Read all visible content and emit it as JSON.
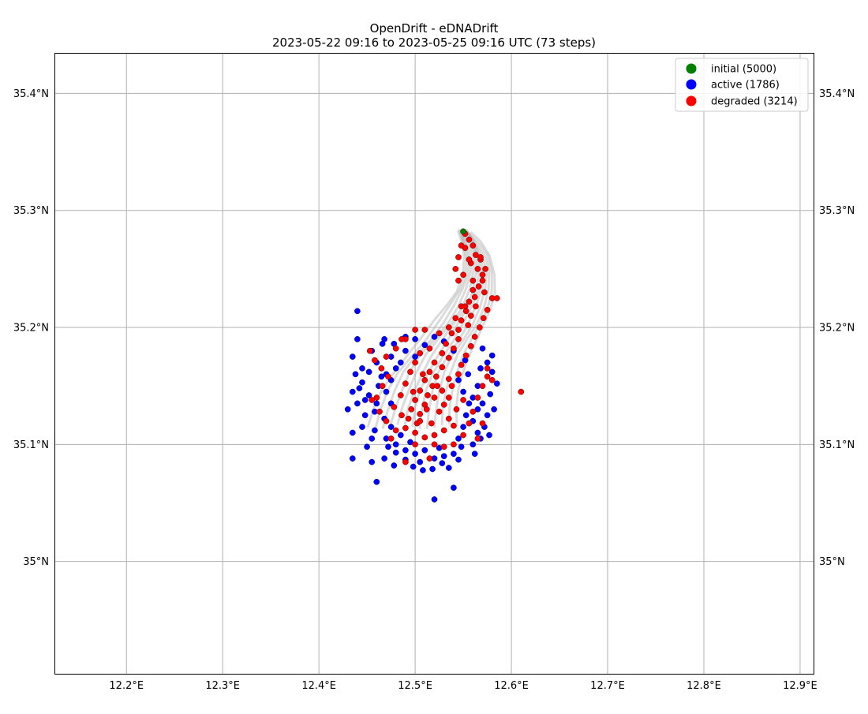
{
  "chart_data": {
    "type": "scatter",
    "title": "OpenDrift - eDNADrift",
    "subtitle": "2023-05-22 09:16 to 2023-05-25 09:16 UTC (73 steps)",
    "xlabel": "",
    "ylabel": "",
    "xlim": [
      12.126,
      12.914
    ],
    "ylim": [
      34.904,
      35.434
    ],
    "grid": true,
    "legend_position": "top-right",
    "x_ticks": [
      {
        "value": 12.2,
        "label": "12.2°E"
      },
      {
        "value": 12.3,
        "label": "12.3°E"
      },
      {
        "value": 12.4,
        "label": "12.4°E"
      },
      {
        "value": 12.5,
        "label": "12.5°E"
      },
      {
        "value": 12.6,
        "label": "12.6°E"
      },
      {
        "value": 12.7,
        "label": "12.7°E"
      },
      {
        "value": 12.8,
        "label": "12.8°E"
      },
      {
        "value": 12.9,
        "label": "12.9°E"
      }
    ],
    "y_ticks": [
      {
        "value": 35.0,
        "label": "35°N"
      },
      {
        "value": 35.1,
        "label": "35.1°N"
      },
      {
        "value": 35.2,
        "label": "35.2°N"
      },
      {
        "value": 35.3,
        "label": "35.3°N"
      },
      {
        "value": 35.4,
        "label": "35.4°N"
      }
    ],
    "series": [
      {
        "name": "initial (5000)",
        "color": "#008000",
        "points": [
          [
            12.55,
            35.282
          ]
        ]
      },
      {
        "name": "active (1786)",
        "color": "#0000ff",
        "points": [
          [
            12.44,
            35.214
          ],
          [
            12.44,
            35.19
          ],
          [
            12.435,
            35.175
          ],
          [
            12.445,
            35.165
          ],
          [
            12.438,
            35.16
          ],
          [
            12.445,
            35.153
          ],
          [
            12.435,
            35.145
          ],
          [
            12.44,
            35.135
          ],
          [
            12.43,
            35.13
          ],
          [
            12.448,
            35.125
          ],
          [
            12.445,
            35.115
          ],
          [
            12.435,
            35.11
          ],
          [
            12.455,
            35.105
          ],
          [
            12.45,
            35.098
          ],
          [
            12.435,
            35.088
          ],
          [
            12.455,
            35.085
          ],
          [
            12.468,
            35.088
          ],
          [
            12.478,
            35.082
          ],
          [
            12.48,
            35.093
          ],
          [
            12.49,
            35.087
          ],
          [
            12.498,
            35.081
          ],
          [
            12.508,
            35.078
          ],
          [
            12.52,
            35.088
          ],
          [
            12.53,
            35.09
          ],
          [
            12.54,
            35.092
          ],
          [
            12.548,
            35.098
          ],
          [
            12.535,
            35.08
          ],
          [
            12.518,
            35.079
          ],
          [
            12.46,
            35.068
          ],
          [
            12.52,
            35.053
          ],
          [
            12.54,
            35.063
          ],
          [
            12.568,
            35.105
          ],
          [
            12.572,
            35.115
          ],
          [
            12.575,
            35.125
          ],
          [
            12.57,
            35.135
          ],
          [
            12.578,
            35.143
          ],
          [
            12.585,
            35.152
          ],
          [
            12.58,
            35.162
          ],
          [
            12.575,
            35.17
          ],
          [
            12.58,
            35.176
          ],
          [
            12.57,
            35.182
          ],
          [
            12.468,
            35.19
          ],
          [
            12.478,
            35.186
          ],
          [
            12.49,
            35.192
          ],
          [
            12.5,
            35.19
          ],
          [
            12.455,
            35.18
          ],
          [
            12.46,
            35.17
          ],
          [
            12.47,
            35.16
          ],
          [
            12.462,
            35.15
          ],
          [
            12.452,
            35.142
          ],
          [
            12.46,
            35.135
          ],
          [
            12.468,
            35.122
          ],
          [
            12.458,
            35.112
          ],
          [
            12.47,
            35.105
          ],
          [
            12.48,
            35.1
          ],
          [
            12.49,
            35.095
          ],
          [
            12.5,
            35.092
          ],
          [
            12.51,
            35.095
          ],
          [
            12.525,
            35.097
          ],
          [
            12.56,
            35.1
          ],
          [
            12.565,
            35.11
          ],
          [
            12.56,
            35.12
          ],
          [
            12.565,
            35.13
          ],
          [
            12.56,
            35.14
          ],
          [
            12.565,
            35.15
          ],
          [
            12.555,
            35.16
          ],
          [
            12.568,
            35.165
          ],
          [
            12.475,
            35.175
          ],
          [
            12.48,
            35.165
          ],
          [
            12.475,
            35.155
          ],
          [
            12.47,
            35.145
          ],
          [
            12.475,
            35.135
          ],
          [
            12.475,
            35.115
          ],
          [
            12.485,
            35.108
          ],
          [
            12.495,
            35.102
          ],
          [
            12.545,
            35.105
          ],
          [
            12.55,
            35.115
          ],
          [
            12.553,
            35.125
          ],
          [
            12.556,
            35.135
          ],
          [
            12.55,
            35.145
          ],
          [
            12.545,
            35.155
          ],
          [
            12.49,
            35.18
          ],
          [
            12.485,
            35.17
          ],
          [
            12.5,
            35.175
          ],
          [
            12.51,
            35.185
          ],
          [
            12.52,
            35.192
          ],
          [
            12.53,
            35.188
          ],
          [
            12.54,
            35.18
          ],
          [
            12.552,
            35.172
          ],
          [
            12.448,
            35.138
          ],
          [
            12.442,
            35.148
          ],
          [
            12.465,
            35.158
          ],
          [
            12.458,
            35.128
          ],
          [
            12.472,
            35.098
          ],
          [
            12.505,
            35.085
          ],
          [
            12.528,
            35.084
          ],
          [
            12.545,
            35.087
          ],
          [
            12.562,
            35.092
          ],
          [
            12.582,
            35.13
          ],
          [
            12.577,
            35.108
          ],
          [
            12.466,
            35.186
          ],
          [
            12.452,
            35.162
          ]
        ]
      },
      {
        "name": "degraded (3214)",
        "color": "#ff0000",
        "points": [
          [
            12.552,
            35.28
          ],
          [
            12.556,
            35.275
          ],
          [
            12.56,
            35.27
          ],
          [
            12.552,
            35.268
          ],
          [
            12.563,
            35.262
          ],
          [
            12.568,
            35.258
          ],
          [
            12.558,
            35.255
          ],
          [
            12.565,
            35.25
          ],
          [
            12.57,
            35.245
          ],
          [
            12.56,
            35.24
          ],
          [
            12.566,
            35.235
          ],
          [
            12.572,
            35.23
          ],
          [
            12.562,
            35.226
          ],
          [
            12.556,
            35.222
          ],
          [
            12.563,
            35.218
          ],
          [
            12.553,
            35.214
          ],
          [
            12.558,
            35.21
          ],
          [
            12.548,
            35.206
          ],
          [
            12.555,
            35.202
          ],
          [
            12.545,
            35.198
          ],
          [
            12.538,
            35.195
          ],
          [
            12.545,
            35.19
          ],
          [
            12.532,
            35.186
          ],
          [
            12.54,
            35.182
          ],
          [
            12.528,
            35.178
          ],
          [
            12.535,
            35.174
          ],
          [
            12.52,
            35.17
          ],
          [
            12.528,
            35.166
          ],
          [
            12.515,
            35.162
          ],
          [
            12.522,
            35.158
          ],
          [
            12.51,
            35.155
          ],
          [
            12.518,
            35.15
          ],
          [
            12.505,
            35.146
          ],
          [
            12.513,
            35.142
          ],
          [
            12.5,
            35.138
          ],
          [
            12.51,
            35.134
          ],
          [
            12.496,
            35.13
          ],
          [
            12.505,
            35.126
          ],
          [
            12.493,
            35.122
          ],
          [
            12.502,
            35.118
          ],
          [
            12.49,
            35.114
          ],
          [
            12.5,
            35.11
          ],
          [
            12.51,
            35.106
          ],
          [
            12.52,
            35.108
          ],
          [
            12.53,
            35.112
          ],
          [
            12.54,
            35.116
          ],
          [
            12.535,
            35.122
          ],
          [
            12.525,
            35.128
          ],
          [
            12.53,
            35.134
          ],
          [
            12.52,
            35.14
          ],
          [
            12.528,
            35.146
          ],
          [
            12.538,
            35.15
          ],
          [
            12.535,
            35.156
          ],
          [
            12.545,
            35.16
          ],
          [
            12.548,
            35.168
          ],
          [
            12.553,
            35.176
          ],
          [
            12.558,
            35.184
          ],
          [
            12.562,
            35.192
          ],
          [
            12.567,
            35.2
          ],
          [
            12.571,
            35.208
          ],
          [
            12.575,
            35.215
          ],
          [
            12.58,
            35.225
          ],
          [
            12.585,
            35.225
          ],
          [
            12.545,
            35.24
          ],
          [
            12.542,
            35.25
          ],
          [
            12.545,
            35.26
          ],
          [
            12.548,
            35.27
          ],
          [
            12.57,
            35.24
          ],
          [
            12.573,
            35.25
          ],
          [
            12.568,
            35.26
          ],
          [
            12.548,
            35.218
          ],
          [
            12.542,
            35.208
          ],
          [
            12.535,
            35.2
          ],
          [
            12.525,
            35.195
          ],
          [
            12.51,
            35.198
          ],
          [
            12.5,
            35.198
          ],
          [
            12.49,
            35.19
          ],
          [
            12.48,
            35.182
          ],
          [
            12.47,
            35.175
          ],
          [
            12.465,
            35.165
          ],
          [
            12.472,
            35.158
          ],
          [
            12.466,
            35.15
          ],
          [
            12.46,
            35.14
          ],
          [
            12.455,
            35.138
          ],
          [
            12.463,
            35.128
          ],
          [
            12.47,
            35.12
          ],
          [
            12.48,
            35.112
          ],
          [
            12.478,
            35.132
          ],
          [
            12.485,
            35.142
          ],
          [
            12.49,
            35.152
          ],
          [
            12.495,
            35.162
          ],
          [
            12.5,
            35.17
          ],
          [
            12.505,
            35.178
          ],
          [
            12.515,
            35.182
          ],
          [
            12.52,
            35.1
          ],
          [
            12.53,
            35.098
          ],
          [
            12.54,
            35.1
          ],
          [
            12.55,
            35.108
          ],
          [
            12.556,
            35.118
          ],
          [
            12.56,
            35.128
          ],
          [
            12.565,
            35.14
          ],
          [
            12.57,
            35.15
          ],
          [
            12.575,
            35.158
          ],
          [
            12.575,
            35.165
          ],
          [
            12.58,
            35.155
          ],
          [
            12.57,
            35.118
          ],
          [
            12.565,
            35.105
          ],
          [
            12.49,
            35.085
          ],
          [
            12.515,
            35.088
          ],
          [
            12.61,
            35.145
          ],
          [
            12.552,
            35.218
          ],
          [
            12.56,
            35.232
          ],
          [
            12.55,
            35.245
          ],
          [
            12.556,
            35.258
          ],
          [
            12.453,
            35.18
          ],
          [
            12.458,
            35.172
          ],
          [
            12.486,
            35.19
          ],
          [
            12.505,
            35.12
          ],
          [
            12.512,
            35.13
          ],
          [
            12.517,
            35.118
          ],
          [
            12.523,
            35.15
          ],
          [
            12.508,
            35.16
          ],
          [
            12.498,
            35.145
          ],
          [
            12.486,
            35.125
          ],
          [
            12.475,
            35.105
          ],
          [
            12.5,
            35.1
          ],
          [
            12.535,
            35.14
          ],
          [
            12.543,
            35.13
          ],
          [
            12.55,
            35.138
          ]
        ]
      }
    ],
    "trajectory_band_color": "#b0b0b0",
    "trajectory_spine": [
      [
        12.551,
        35.282
      ],
      [
        12.558,
        35.272
      ],
      [
        12.564,
        35.26
      ],
      [
        12.566,
        35.246
      ],
      [
        12.563,
        35.232
      ],
      [
        12.556,
        35.218
      ],
      [
        12.547,
        35.205
      ],
      [
        12.535,
        35.19
      ],
      [
        12.522,
        35.175
      ],
      [
        12.512,
        35.16
      ],
      [
        12.505,
        35.145
      ],
      [
        12.5,
        35.13
      ],
      [
        12.497,
        35.115
      ]
    ],
    "legend": [
      {
        "label": "initial (5000)",
        "color": "#008000"
      },
      {
        "label": "active (1786)",
        "color": "#0000ff"
      },
      {
        "label": "degraded (3214)",
        "color": "#ff0000"
      }
    ]
  }
}
